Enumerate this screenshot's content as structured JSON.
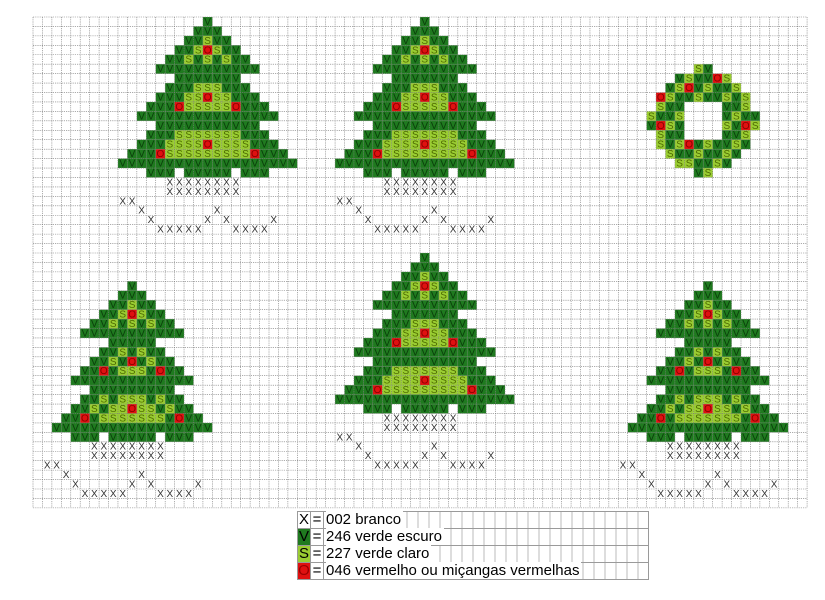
{
  "symbols": {
    "X": {
      "color": "#ffffff",
      "text_color": "#333333"
    },
    "V": {
      "color": "#1f7a1f",
      "text_color": "#0b3d0b"
    },
    "S": {
      "color": "#9acd32",
      "text_color": "#4d6b00"
    },
    "O": {
      "color": "#e01010",
      "text_color": "#8a0000"
    }
  },
  "legend": [
    {
      "symbol": "X",
      "eq": "=",
      "label": "002 branco",
      "color": "#ffffff"
    },
    {
      "symbol": "V",
      "eq": "=",
      "label": "246 verde escuro",
      "color": "#1f7a1f"
    },
    {
      "symbol": "S",
      "eq": "=",
      "label": "227 verde claro",
      "color": "#9acd32"
    },
    {
      "symbol": "O",
      "eq": "=",
      "label": "046 vermelho ou miçangas vermelhas",
      "color": "#e01010"
    }
  ]
}
